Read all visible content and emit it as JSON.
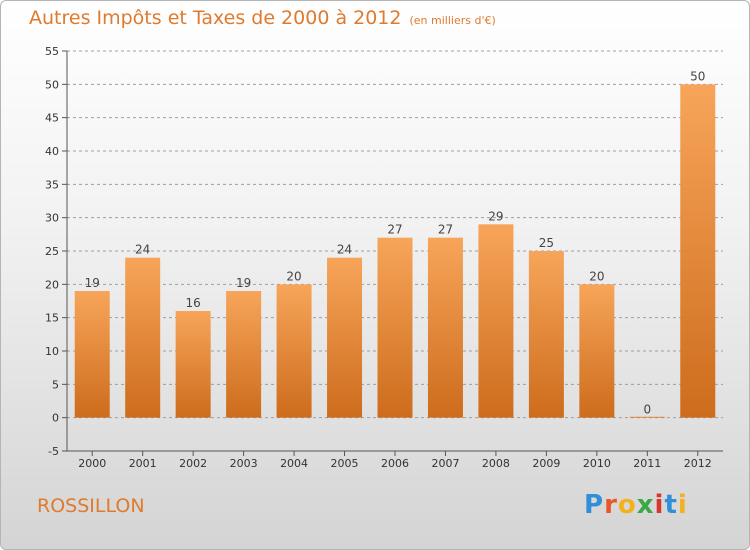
{
  "title": "Autres Impôts et Taxes de 2000 à 2012",
  "subtitle": "(en milliers d'€)",
  "commune": "ROSSILLON",
  "logo": {
    "letters": [
      "P",
      "r",
      "o",
      "x",
      "i",
      "t",
      "i"
    ],
    "colors": [
      "#2f8fd8",
      "#e8562a",
      "#f2b11d",
      "#3aa845",
      "#d9362e",
      "#2f8fd8",
      "#f2b11d"
    ]
  },
  "colors": {
    "title": "#e07a2c",
    "bar_top": "#f7a55a",
    "bar_bottom": "#cd6c1c",
    "grid": "#9e9e9e",
    "axis": "#555555"
  },
  "chart_data": {
    "type": "bar",
    "categories": [
      "2000",
      "2001",
      "2002",
      "2003",
      "2004",
      "2005",
      "2006",
      "2007",
      "2008",
      "2009",
      "2010",
      "2011",
      "2012"
    ],
    "values": [
      19,
      24,
      16,
      19,
      20,
      24,
      27,
      27,
      29,
      25,
      20,
      0,
      50
    ],
    "ylim": [
      -5,
      55
    ],
    "yticks": [
      -5,
      0,
      5,
      10,
      15,
      20,
      25,
      30,
      35,
      40,
      45,
      50,
      55
    ],
    "grid": "horizontal dashed",
    "data_labels": true
  }
}
